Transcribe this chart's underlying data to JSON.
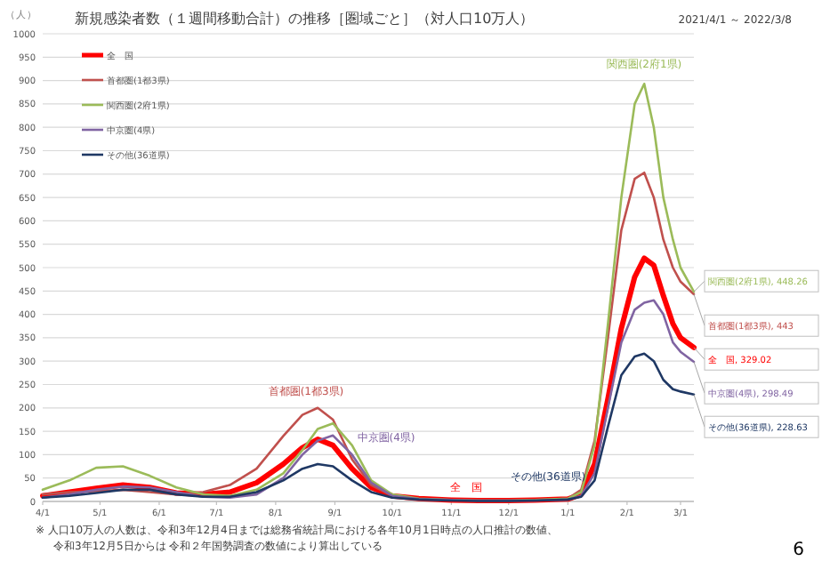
{
  "chart_data": {
    "type": "line",
    "title": "新規感染者数（１週間移動合計）の推移［圏域ごと］（対人口10万人）",
    "subtitle": "2021/4/1 ～ 2022/3/8",
    "ylabel": "（人）",
    "x": [
      "2021-04-01",
      "2021-04-15",
      "2021-04-29",
      "2021-05-13",
      "2021-05-27",
      "2021-06-10",
      "2021-06-24",
      "2021-07-08",
      "2021-07-22",
      "2021-08-05",
      "2021-08-15",
      "2021-08-23",
      "2021-08-31",
      "2021-09-10",
      "2021-09-20",
      "2021-10-01",
      "2021-10-15",
      "2021-11-01",
      "2021-11-15",
      "2021-12-01",
      "2021-12-15",
      "2022-01-01",
      "2022-01-08",
      "2022-01-15",
      "2022-01-22",
      "2022-01-29",
      "2022-02-05",
      "2022-02-10",
      "2022-02-15",
      "2022-02-20",
      "2022-02-25",
      "2022-03-01",
      "2022-03-08"
    ],
    "xlim": [
      "2021-04-01",
      "2022-03-08"
    ],
    "ylim": [
      0,
      1000
    ],
    "yticks": [
      0,
      50,
      100,
      150,
      200,
      250,
      300,
      350,
      400,
      450,
      500,
      550,
      600,
      650,
      700,
      750,
      800,
      850,
      900,
      950,
      1000
    ],
    "xticks": [
      {
        "value": "2021-04-01",
        "label": "4/1"
      },
      {
        "value": "2021-05-01",
        "label": "5/1"
      },
      {
        "value": "2021-06-01",
        "label": "6/1"
      },
      {
        "value": "2021-07-01",
        "label": "7/1"
      },
      {
        "value": "2021-08-01",
        "label": "8/1"
      },
      {
        "value": "2021-09-01",
        "label": "9/1"
      },
      {
        "value": "2021-10-01",
        "label": "10/1"
      },
      {
        "value": "2021-11-01",
        "label": "11/1"
      },
      {
        "value": "2021-12-01",
        "label": "12/1"
      },
      {
        "value": "2022-01-01",
        "label": "1/1"
      },
      {
        "value": "2022-02-01",
        "label": "2/1"
      },
      {
        "value": "2022-03-01",
        "label": "3/1"
      }
    ],
    "grid": "y",
    "legend": "top left",
    "line_style": "solid",
    "marker": "none",
    "series": [
      {
        "name": "全　国",
        "color": "#ff0000",
        "values": [
          12,
          20,
          28,
          35,
          30,
          18,
          15,
          20,
          40,
          80,
          115,
          133,
          120,
          70,
          30,
          12,
          6,
          3,
          2,
          2,
          3,
          5,
          15,
          80,
          220,
          370,
          480,
          520,
          505,
          440,
          380,
          350,
          329.02
        ],
        "value_labels": [
          null,
          null,
          null,
          null,
          null,
          null,
          null,
          null,
          null,
          null,
          null,
          null,
          null,
          null,
          null,
          null,
          null,
          null,
          null,
          null,
          null,
          null,
          null,
          null,
          null,
          null,
          null,
          null,
          null,
          null,
          null,
          null,
          "全　国, 329.02"
        ]
      },
      {
        "name": "首都圏(1都3県)",
        "color": "#c0504d",
        "values": [
          15,
          20,
          22,
          25,
          20,
          15,
          20,
          35,
          70,
          140,
          185,
          200,
          175,
          90,
          35,
          12,
          5,
          3,
          2,
          2,
          3,
          6,
          25,
          130,
          350,
          580,
          690,
          703,
          650,
          560,
          500,
          470,
          443
        ],
        "value_labels": [
          null,
          null,
          null,
          null,
          null,
          null,
          null,
          null,
          null,
          null,
          null,
          null,
          null,
          null,
          null,
          null,
          null,
          null,
          null,
          null,
          null,
          null,
          null,
          null,
          null,
          null,
          null,
          null,
          null,
          null,
          null,
          null,
          "首都圏(1都3県), 443"
        ]
      },
      {
        "name": "関西圏(2府1県)",
        "color": "#9bbb59",
        "values": [
          25,
          45,
          72,
          75,
          55,
          30,
          15,
          12,
          25,
          60,
          110,
          155,
          167,
          120,
          45,
          15,
          6,
          3,
          2,
          2,
          3,
          6,
          20,
          120,
          380,
          650,
          850,
          893,
          800,
          650,
          560,
          500,
          448.26
        ],
        "value_labels": [
          null,
          null,
          null,
          null,
          null,
          null,
          null,
          null,
          null,
          null,
          null,
          null,
          null,
          null,
          null,
          null,
          null,
          null,
          null,
          null,
          null,
          null,
          null,
          null,
          null,
          null,
          null,
          null,
          null,
          null,
          null,
          null,
          "関西圏(2府1県), 448.26"
        ]
      },
      {
        "name": "中京圏(4県)",
        "color": "#8064a2",
        "values": [
          8,
          15,
          25,
          32,
          30,
          20,
          10,
          8,
          15,
          50,
          100,
          130,
          141,
          100,
          40,
          12,
          5,
          3,
          2,
          2,
          2,
          4,
          12,
          60,
          200,
          340,
          410,
          425,
          430,
          400,
          340,
          320,
          298.49
        ],
        "value_labels": [
          null,
          null,
          null,
          null,
          null,
          null,
          null,
          null,
          null,
          null,
          null,
          null,
          null,
          null,
          null,
          null,
          null,
          null,
          null,
          null,
          null,
          null,
          null,
          null,
          null,
          null,
          null,
          null,
          null,
          null,
          null,
          null,
          "中京圏(4県), 298.49"
        ]
      },
      {
        "name": "その他(36道県)",
        "color": "#1f3864",
        "values": [
          8,
          12,
          18,
          25,
          25,
          15,
          10,
          10,
          20,
          45,
          70,
          80,
          75,
          45,
          20,
          8,
          4,
          2,
          1,
          1,
          2,
          4,
          10,
          45,
          160,
          270,
          310,
          316,
          300,
          260,
          240,
          235,
          228.63
        ],
        "value_labels": [
          null,
          null,
          null,
          null,
          null,
          null,
          null,
          null,
          null,
          null,
          null,
          null,
          null,
          null,
          null,
          null,
          null,
          null,
          null,
          null,
          null,
          null,
          null,
          null,
          null,
          null,
          null,
          null,
          null,
          null,
          null,
          null,
          "その他(36道県), 228.63"
        ]
      }
    ],
    "annotations": [
      "全　国",
      "首都圏(1都3県)",
      "関西圏(2府1県)",
      "中京圏(4県)",
      "その他(36道県)",
      "※ 人口10万人の人数は、令和3年12月4日までは総務省統計局における各年10月1日時点の人口推計の数値、",
      "令和3年12月5日からは 令和２年国勢調査の数値により算出している",
      "6"
    ]
  }
}
